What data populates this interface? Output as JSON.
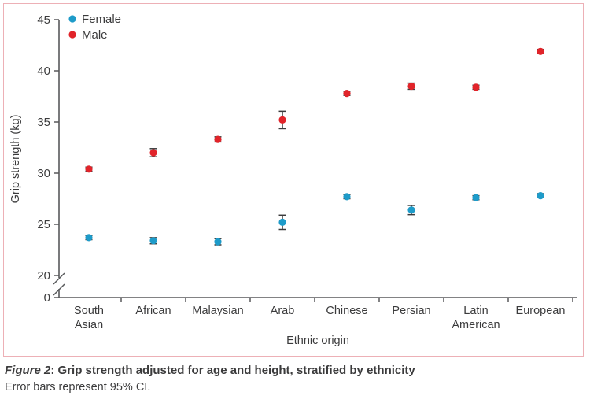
{
  "figure": {
    "caption_label": "Figure 2",
    "caption_title": ": Grip strength adjusted for age and height, stratified by ethnicity",
    "caption_note": "Error bars represent 95% CI."
  },
  "colors": {
    "female": "#1e9bc9",
    "male": "#e1242a",
    "axis": "#58595b",
    "text": "#3b3b3c",
    "error_bar": "#3b3b3c",
    "frame_border": "#edb0b6"
  },
  "chart_data": {
    "type": "scatter",
    "title": "",
    "xlabel": "Ethnic origin",
    "ylabel": "Grip strength (kg)",
    "categories": [
      "South Asian",
      "African",
      "Malaysian",
      "Arab",
      "Chinese",
      "Persian",
      "Latin American",
      "European"
    ],
    "y_ticks": [
      45,
      40,
      35,
      30,
      25,
      20
    ],
    "y_zero_label": "0",
    "axis_break": true,
    "ylim_display": [
      20,
      45
    ],
    "legend_position": "top-left",
    "legend": [
      "Female",
      "Male"
    ],
    "series": [
      {
        "name": "Female",
        "color": "#1e9bc9",
        "values": [
          23.7,
          23.4,
          23.3,
          25.2,
          27.7,
          26.4,
          27.6,
          27.8
        ],
        "ci95_half": [
          0.2,
          0.3,
          0.3,
          0.7,
          0.2,
          0.45,
          0.2,
          0.2
        ]
      },
      {
        "name": "Male",
        "color": "#e1242a",
        "values": [
          30.4,
          32.0,
          33.3,
          35.2,
          37.8,
          38.5,
          38.4,
          41.9
        ],
        "ci95_half": [
          0.2,
          0.4,
          0.25,
          0.85,
          0.2,
          0.3,
          0.2,
          0.2
        ]
      }
    ]
  }
}
